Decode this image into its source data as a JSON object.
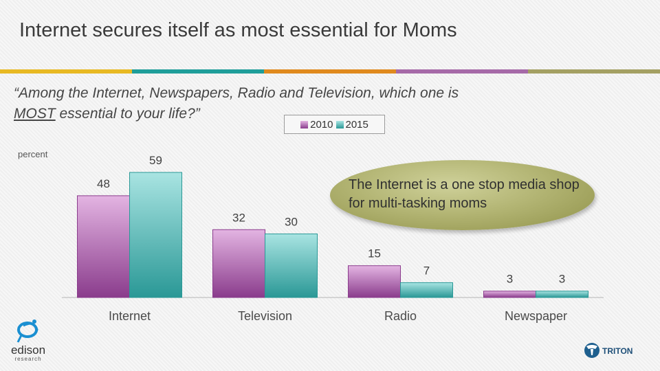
{
  "title": "Internet secures itself as most essential for Moms",
  "band_colors": [
    "#e8b923",
    "#1f9e9a",
    "#e08a1e",
    "#a66aa8",
    "#a4a063"
  ],
  "question": {
    "line1": "“Among the Internet, Newspapers,  Radio and Television, which one is",
    "emph": "MOST",
    "rest": " essential to your life?”"
  },
  "unit_label": "percent",
  "callout": "The Internet is a one stop media shop for multi-tasking moms",
  "chart_data": {
    "type": "bar",
    "categories": [
      "Internet",
      "Television",
      "Radio",
      "Newspaper"
    ],
    "series": [
      {
        "name": "2010",
        "values": [
          48,
          32,
          15,
          3
        ],
        "color_top": "#e3b4e2",
        "color_bottom": "#8a3c8c"
      },
      {
        "name": "2015",
        "values": [
          59,
          30,
          7,
          3
        ],
        "color_top": "#a9e4e2",
        "color_bottom": "#2a9896"
      }
    ],
    "ylim": [
      0,
      70
    ],
    "ylabel": "percent",
    "grid": false,
    "legend": "top-center"
  },
  "logos": {
    "edison_name": "edison",
    "edison_sub": "research",
    "triton_name": "TRITON",
    "edison_icon": "edison-swirl-icon",
    "triton_icon": "triton-emblem-icon"
  }
}
